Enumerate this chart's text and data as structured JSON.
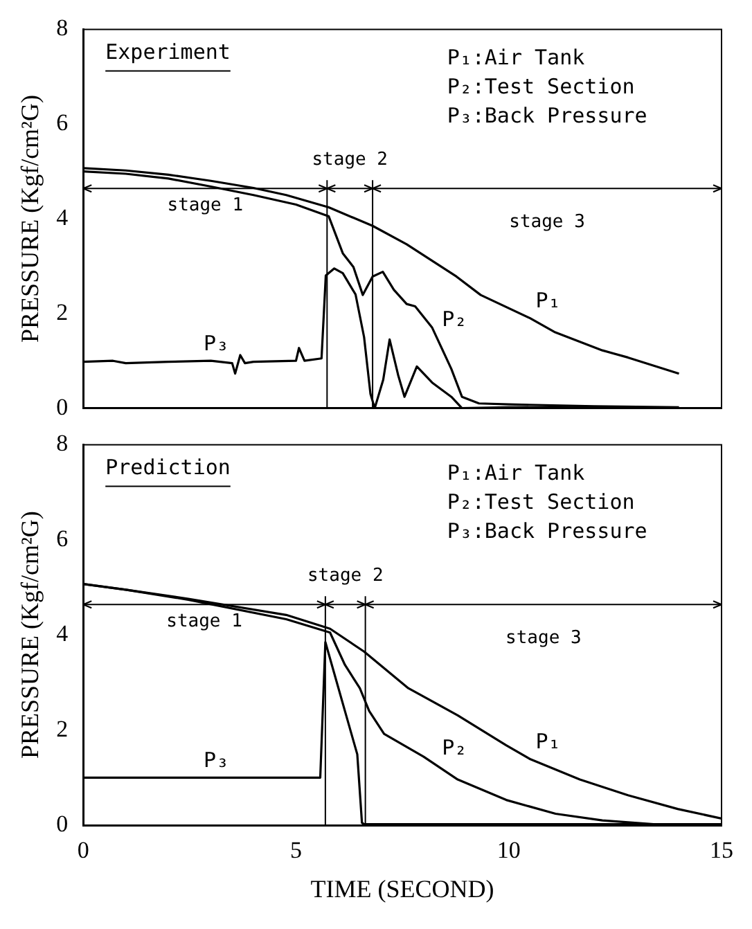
{
  "chart_data": [
    {
      "type": "line",
      "title": "Experiment",
      "ylabel": "PRESSURE (Kgf/cm²G)",
      "xlim": [
        0,
        15
      ],
      "xticks": [
        0,
        5,
        10,
        15
      ],
      "ylim": [
        0,
        8
      ],
      "yticks": [
        0,
        2,
        4,
        6,
        8
      ],
      "tick_labels": "y",
      "annotations": [
        "P₁:Air Tank",
        "P₂:Test Section",
        "P₃:Back Pressure",
        "stage 1",
        "stage 2",
        "stage 3"
      ],
      "ref_lines": [
        {
          "axis": "x",
          "value": 5.73
        },
        {
          "axis": "x",
          "value": 6.8
        }
      ],
      "series": [
        {
          "name": "P₁",
          "color": "#000000",
          "x": [
            0,
            1,
            2,
            3,
            4,
            4.77,
            5.77,
            6.8,
            7.6,
            8.77,
            9.34,
            10.5,
            11.07,
            12.2,
            12.8,
            14
          ],
          "values": [
            5.07,
            5.02,
            4.93,
            4.8,
            4.65,
            4.5,
            4.24,
            3.85,
            3.46,
            2.78,
            2.39,
            1.9,
            1.61,
            1.22,
            1.07,
            0.73
          ]
        },
        {
          "name": "P₂",
          "color": "#000000",
          "x": [
            0,
            1,
            2,
            3,
            4,
            5,
            5.77,
            6.1,
            6.35,
            6.57,
            6.8,
            7.04,
            7.3,
            7.6,
            7.8,
            8.2,
            8.65,
            8.9,
            9.3,
            10,
            12,
            14
          ],
          "values": [
            5.0,
            4.95,
            4.85,
            4.68,
            4.5,
            4.3,
            4.05,
            3.27,
            2.98,
            2.39,
            2.78,
            2.88,
            2.5,
            2.2,
            2.15,
            1.7,
            0.83,
            0.24,
            0.1,
            0.08,
            0.04,
            0.02
          ]
        },
        {
          "name": "P₃",
          "color": "#000000",
          "x": [
            0,
            0.7,
            1,
            2,
            3,
            3.5,
            3.57,
            3.69,
            3.8,
            4,
            5,
            5.07,
            5.2,
            5.6,
            5.7,
            5.9,
            6.1,
            6.4,
            6.6,
            6.75,
            6.85,
            7.05,
            7.2,
            7.4,
            7.55,
            7.84,
            8.2,
            8.65,
            8.9,
            10,
            14
          ],
          "values": [
            0.98,
            1.0,
            0.95,
            0.98,
            1.0,
            0.95,
            0.73,
            1.12,
            0.95,
            0.98,
            1.0,
            1.27,
            1.0,
            1.05,
            2.8,
            2.95,
            2.85,
            2.4,
            1.5,
            0.3,
            0.0,
            0.6,
            1.45,
            0.7,
            0.24,
            0.88,
            0.54,
            0.24,
            0.0,
            0.02,
            0.0
          ]
        }
      ]
    },
    {
      "type": "line",
      "title": "Prediction",
      "xlabel": "TIME (SECOND)",
      "ylabel": "PRESSURE (Kgf/cm²G)",
      "xlim": [
        0,
        15
      ],
      "xticks": [
        0,
        5,
        10,
        15
      ],
      "ylim": [
        0,
        8
      ],
      "yticks": [
        0,
        2,
        4,
        6,
        8
      ],
      "annotations": [
        "P₁:Air Tank",
        "P₂:Test Section",
        "P₃:Back Pressure",
        "stage 1",
        "stage 2",
        "stage 3"
      ],
      "ref_lines": [
        {
          "axis": "x",
          "value": 5.69
        },
        {
          "axis": "x",
          "value": 6.63
        }
      ],
      "series": [
        {
          "name": "P₁",
          "color": "#000000",
          "x": [
            0,
            1,
            2.47,
            4.77,
            5.8,
            6.6,
            7.64,
            8.8,
            9.94,
            10.5,
            11.67,
            12.8,
            13.97,
            15
          ],
          "values": [
            5.07,
            4.95,
            4.76,
            4.42,
            4.13,
            3.65,
            2.88,
            2.31,
            1.68,
            1.39,
            0.96,
            0.63,
            0.34,
            0.14
          ]
        },
        {
          "name": "P₂",
          "color": "#000000",
          "x": [
            0,
            1,
            2.47,
            4.77,
            5.8,
            6.15,
            6.5,
            6.72,
            7.07,
            8.0,
            8.8,
            9.94,
            11.1,
            12.2,
            13.4,
            15
          ],
          "values": [
            5.07,
            4.95,
            4.74,
            4.33,
            4.05,
            3.37,
            2.88,
            2.4,
            1.92,
            1.44,
            0.96,
            0.53,
            0.24,
            0.1,
            0.02,
            0.0
          ]
        },
        {
          "name": "P₃",
          "color": "#000000",
          "x": [
            0,
            5.57,
            5.69,
            6.15,
            6.44,
            6.55,
            6.6,
            15
          ],
          "values": [
            1.0,
            1.0,
            3.85,
            2.4,
            1.49,
            0.05,
            0.02,
            0.02
          ]
        }
      ]
    }
  ]
}
